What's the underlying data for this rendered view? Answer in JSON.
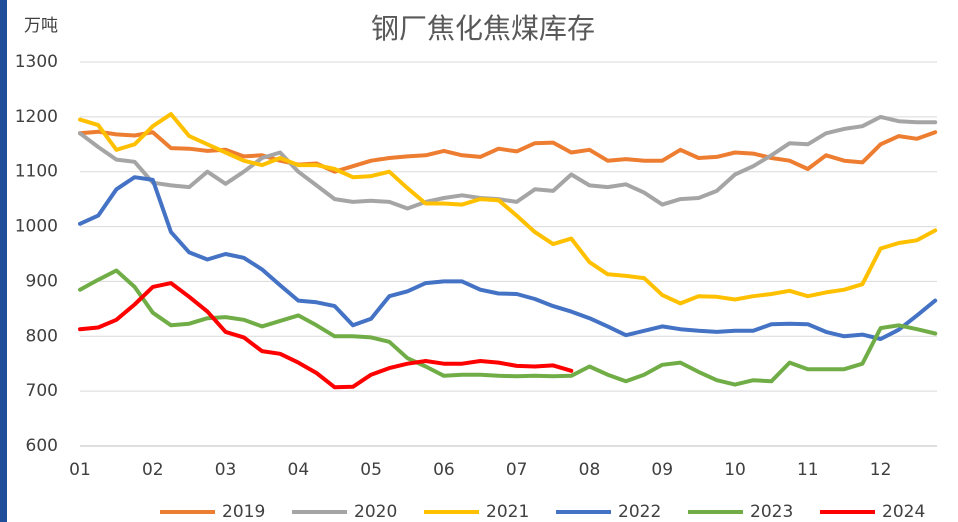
{
  "chart_data": {
    "type": "line",
    "title": "钢厂焦化焦煤库存",
    "y_label": "万吨",
    "categories": [
      "01",
      null,
      null,
      null,
      "02",
      null,
      null,
      null,
      "03",
      null,
      null,
      null,
      "04",
      null,
      null,
      null,
      "05",
      null,
      null,
      null,
      "06",
      null,
      null,
      null,
      "07",
      null,
      null,
      null,
      "08",
      null,
      null,
      null,
      "09",
      null,
      null,
      null,
      "10",
      null,
      null,
      null,
      "11",
      null,
      null,
      null,
      "12",
      null,
      null,
      null
    ],
    "ylim": [
      600,
      1300
    ],
    "yticks": [
      600,
      700,
      800,
      900,
      1000,
      1100,
      1200,
      1300
    ],
    "grid": true,
    "legend": "bottom",
    "series": [
      {
        "name": "2019",
        "color": "#ED7D31",
        "values": [
          1170,
          1173,
          1168,
          1166,
          1172,
          1143,
          1142,
          1138,
          1140,
          1128,
          1130,
          1120,
          1113,
          1115,
          1100,
          1110,
          1120,
          1125,
          1128,
          1130,
          1138,
          1130,
          1127,
          1142,
          1137,
          1152,
          1153,
          1135,
          1140,
          1120,
          1123,
          1120,
          1120,
          1140,
          1125,
          1127,
          1135,
          1133,
          1125,
          1120,
          1105,
          1130,
          1120,
          1117,
          1150,
          1165,
          1160,
          1172
        ]
      },
      {
        "name": "2020",
        "color": "#A5A5A5",
        "values": [
          1170,
          1145,
          1122,
          1118,
          1080,
          1075,
          1072,
          1100,
          1078,
          1100,
          1125,
          1135,
          1100,
          1075,
          1050,
          1045,
          1047,
          1045,
          1033,
          1045,
          1052,
          1057,
          1052,
          1050,
          1045,
          1068,
          1065,
          1095,
          1075,
          1072,
          1077,
          1062,
          1040,
          1050,
          1052,
          1065,
          1095,
          1110,
          1130,
          1152,
          1150,
          1170,
          1178,
          1183,
          1200,
          1192,
          1190,
          1190
        ]
      },
      {
        "name": "2021",
        "color": "#FFC000",
        "values": [
          1195,
          1185,
          1140,
          1150,
          1183,
          1205,
          1165,
          1150,
          1135,
          1120,
          1112,
          1125,
          1112,
          1112,
          1105,
          1090,
          1092,
          1100,
          1070,
          1042,
          1042,
          1040,
          1050,
          1048,
          1020,
          990,
          968,
          978,
          935,
          913,
          910,
          906,
          875,
          860,
          873,
          872,
          867,
          873,
          877,
          883,
          873,
          880,
          885,
          895,
          960,
          970,
          975,
          993
        ]
      },
      {
        "name": "2022",
        "color": "#4472C4",
        "values": [
          1005,
          1020,
          1068,
          1090,
          1085,
          990,
          953,
          940,
          950,
          943,
          922,
          893,
          865,
          862,
          855,
          820,
          832,
          873,
          882,
          897,
          900,
          900,
          885,
          878,
          877,
          868,
          855,
          845,
          833,
          818,
          802,
          810,
          818,
          813,
          810,
          808,
          810,
          810,
          822,
          823,
          822,
          808,
          800,
          803,
          795,
          812,
          838,
          865
        ]
      },
      {
        "name": "2023",
        "color": "#70AD47",
        "values": [
          885,
          903,
          920,
          890,
          843,
          820,
          823,
          833,
          835,
          830,
          818,
          828,
          838,
          820,
          800,
          800,
          798,
          790,
          760,
          745,
          728,
          730,
          730,
          728,
          727,
          728,
          727,
          728,
          745,
          730,
          718,
          730,
          748,
          752,
          735,
          720,
          712,
          720,
          718,
          752,
          740,
          740,
          740,
          750,
          815,
          820,
          813,
          805
        ]
      },
      {
        "name": "2024",
        "color": "#FF0000",
        "values": [
          813,
          816,
          830,
          858,
          890,
          897,
          872,
          845,
          808,
          798,
          773,
          768,
          752,
          733,
          707,
          708,
          730,
          742,
          750,
          755,
          750,
          750,
          755,
          752,
          746,
          745,
          747,
          737,
          null,
          null,
          null,
          null,
          null,
          null,
          null,
          null,
          null,
          null,
          null,
          null,
          null,
          null,
          null,
          null,
          null,
          null,
          null,
          null
        ]
      }
    ]
  }
}
